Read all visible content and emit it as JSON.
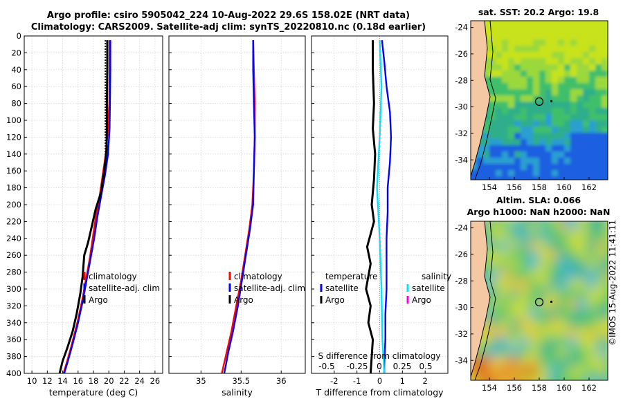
{
  "title": {
    "line1": "Argo profile: csiro 5905042_224 10-Aug-2022 29.6S 158.02E (NRT data)",
    "line2": "Climatology: CARS2009. Satellite-adj clim: synTS_20220810.nc (0.18d earlier)"
  },
  "credit": "©IMOS 15-Aug-2022 11:41:11",
  "colors": {
    "climatology": "#ff0000",
    "satellite": "#0000ff",
    "argo": "#000000",
    "sal_satellite": "#00e5ff",
    "sal_argo": "#ff00cc"
  },
  "chart_data": [
    {
      "type": "line",
      "name": "temperature-profile",
      "xlabel": "temperature (deg C)",
      "ylabel": "",
      "xlim": [
        9,
        27
      ],
      "ylim": [
        0,
        400
      ],
      "y_reversed": true,
      "xticks": [
        10,
        12,
        14,
        16,
        18,
        20,
        22,
        24,
        26
      ],
      "yticks": [
        0,
        20,
        40,
        60,
        80,
        100,
        120,
        140,
        160,
        180,
        200,
        220,
        240,
        260,
        280,
        300,
        320,
        340,
        360,
        380,
        400
      ],
      "grid": true,
      "legend": {
        "placement": "bottom-right",
        "entries": [
          "climatology",
          "satellite-adj. clim",
          "Argo"
        ]
      },
      "series": [
        {
          "name": "climatology",
          "color": "#ff0000",
          "points": [
            [
              20.1,
              5
            ],
            [
              20.1,
              40
            ],
            [
              20.05,
              80
            ],
            [
              19.9,
              110
            ],
            [
              19.6,
              140
            ],
            [
              19.2,
              165
            ],
            [
              18.8,
              190
            ],
            [
              18.3,
              215
            ],
            [
              17.9,
              240
            ],
            [
              17.5,
              265
            ],
            [
              17.0,
              290
            ],
            [
              16.5,
              315
            ],
            [
              15.9,
              340
            ],
            [
              15.2,
              365
            ],
            [
              14.6,
              385
            ],
            [
              14.1,
              400
            ]
          ]
        },
        {
          "name": "satellite-adj. clim",
          "color": "#0000ff",
          "points": [
            [
              20.2,
              5
            ],
            [
              20.2,
              40
            ],
            [
              20.15,
              80
            ],
            [
              20.1,
              110
            ],
            [
              19.9,
              140
            ],
            [
              19.5,
              165
            ],
            [
              19.0,
              190
            ],
            [
              18.5,
              215
            ],
            [
              18.1,
              240
            ],
            [
              17.6,
              265
            ],
            [
              17.1,
              290
            ],
            [
              16.6,
              315
            ],
            [
              16.0,
              340
            ],
            [
              15.3,
              365
            ],
            [
              14.7,
              385
            ],
            [
              14.2,
              400
            ]
          ]
        },
        {
          "name": "Argo",
          "color": "#000000",
          "points": [
            [
              19.8,
              5
            ],
            [
              19.8,
              40
            ],
            [
              19.75,
              80
            ],
            [
              19.75,
              110
            ],
            [
              19.7,
              135
            ],
            [
              19.4,
              160
            ],
            [
              19.0,
              185
            ],
            [
              18.3,
              205
            ],
            [
              17.8,
              225
            ],
            [
              17.3,
              245
            ],
            [
              16.8,
              260
            ],
            [
              16.6,
              285
            ],
            [
              16.3,
              305
            ],
            [
              15.8,
              330
            ],
            [
              15.3,
              350
            ],
            [
              14.6,
              370
            ],
            [
              14.0,
              385
            ],
            [
              13.6,
              400
            ]
          ]
        }
      ]
    },
    {
      "type": "line",
      "name": "salinity-profile",
      "xlabel": "salinity",
      "xlim": [
        34.6,
        36.3
      ],
      "ylim": [
        0,
        400
      ],
      "y_reversed": true,
      "xticks": [
        35,
        35.5,
        36
      ],
      "grid": true,
      "legend": {
        "placement": "bottom-right",
        "entries": [
          "climatology",
          "satellite-adj. clim",
          "Argo"
        ]
      },
      "series": [
        {
          "name": "climatology",
          "color": "#ff0000",
          "points": [
            [
              35.65,
              5
            ],
            [
              35.66,
              40
            ],
            [
              35.67,
              80
            ],
            [
              35.67,
              120
            ],
            [
              35.66,
              160
            ],
            [
              35.64,
              200
            ],
            [
              35.6,
              230
            ],
            [
              35.55,
              260
            ],
            [
              35.5,
              290
            ],
            [
              35.44,
              320
            ],
            [
              35.38,
              350
            ],
            [
              35.32,
              375
            ],
            [
              35.26,
              400
            ]
          ]
        },
        {
          "name": "satellite-adj. clim",
          "color": "#0000ff",
          "points": [
            [
              35.65,
              5
            ],
            [
              35.65,
              40
            ],
            [
              35.66,
              80
            ],
            [
              35.67,
              120
            ],
            [
              35.66,
              160
            ],
            [
              35.65,
              200
            ],
            [
              35.61,
              230
            ],
            [
              35.56,
              260
            ],
            [
              35.51,
              290
            ],
            [
              35.46,
              320
            ],
            [
              35.4,
              350
            ],
            [
              35.34,
              375
            ],
            [
              35.29,
              400
            ]
          ]
        },
        {
          "name": "Argo",
          "color": "#000000",
          "points": []
        }
      ]
    },
    {
      "type": "line",
      "name": "difference-profile",
      "xlabel": "T difference from climatology",
      "xlim": [
        -3,
        3
      ],
      "ylim": [
        0,
        400
      ],
      "y_reversed": true,
      "xticks": [
        -2,
        -1,
        0,
        1,
        2
      ],
      "secondary_xlabel": "S difference from climatology",
      "secondary_xticks": [
        "-0.5",
        "-0.25",
        "0",
        "0.25",
        "0.5"
      ],
      "grid": true,
      "legend": {
        "placement": "bottom",
        "temperature_title": "temperature",
        "salinity_title": "salinity",
        "temperature_entries": [
          "satellite",
          "Argo"
        ],
        "salinity_entries": [
          "satellite",
          "Argo"
        ]
      },
      "series": [
        {
          "name": "T satellite",
          "color": "#0000ff",
          "points": [
            [
              0.1,
              5
            ],
            [
              0.2,
              30
            ],
            [
              0.3,
              60
            ],
            [
              0.45,
              90
            ],
            [
              0.5,
              120
            ],
            [
              0.45,
              150
            ],
            [
              0.35,
              180
            ],
            [
              0.35,
              210
            ],
            [
              0.3,
              240
            ],
            [
              0.3,
              270
            ],
            [
              0.3,
              300
            ],
            [
              0.25,
              330
            ],
            [
              0.25,
              360
            ],
            [
              0.2,
              390
            ],
            [
              0.2,
              400
            ]
          ]
        },
        {
          "name": "T Argo",
          "color": "#000000",
          "points": [
            [
              -0.3,
              5
            ],
            [
              -0.3,
              40
            ],
            [
              -0.25,
              80
            ],
            [
              -0.3,
              110
            ],
            [
              -0.2,
              140
            ],
            [
              -0.25,
              170
            ],
            [
              -0.35,
              200
            ],
            [
              -0.25,
              220
            ],
            [
              -0.55,
              250
            ],
            [
              -0.4,
              270
            ],
            [
              -0.6,
              300
            ],
            [
              -0.4,
              320
            ],
            [
              -0.5,
              340
            ],
            [
              -0.3,
              360
            ],
            [
              -0.35,
              380
            ],
            [
              -0.4,
              400
            ]
          ]
        },
        {
          "name": "S satellite",
          "color": "#00e5ff",
          "points": [
            [
              0.0,
              5
            ],
            [
              0.02,
              60
            ],
            [
              0.0,
              120
            ],
            [
              -0.03,
              180
            ],
            [
              0.0,
              240
            ],
            [
              0.02,
              300
            ],
            [
              0.03,
              360
            ],
            [
              0.05,
              400
            ]
          ]
        },
        {
          "name": "S Argo",
          "color": "#ff00cc",
          "points": []
        }
      ]
    },
    {
      "type": "heatmap",
      "name": "sst-map",
      "title": "sat. SST: 20.2 Argo: 19.8",
      "xlim": [
        152.5,
        163.5
      ],
      "ylim": [
        -35.5,
        -23.5
      ],
      "xticks": [
        154,
        156,
        158,
        160,
        162
      ],
      "yticks": [
        -24,
        -26,
        -28,
        -30,
        -32,
        -34
      ],
      "profile_location": [
        158,
        -29.6
      ]
    },
    {
      "type": "heatmap",
      "name": "sla-map",
      "title_line1": "Altim. SLA: 0.066",
      "title_line2": "Argo h1000: NaN h2000: NaN",
      "xlim": [
        152.5,
        163.5
      ],
      "ylim": [
        -35.5,
        -23.5
      ],
      "xticks": [
        154,
        156,
        158,
        160,
        162
      ],
      "yticks": [
        -24,
        -26,
        -28,
        -30,
        -32,
        -34
      ],
      "profile_location": [
        158,
        -29.6
      ]
    }
  ]
}
